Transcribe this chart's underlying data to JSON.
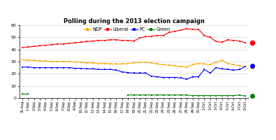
{
  "title": "Polling during the 2013 election campaign",
  "x_labels": [
    "31-Aug",
    "1-Sep",
    "2-Sep",
    "3-Sep",
    "4-Sep",
    "5-Sep",
    "6-Sep",
    "7-Sep",
    "8-Sep",
    "9-Sep",
    "10-Sep",
    "11-Sep",
    "12-Sep",
    "13-Sep",
    "14-Sep",
    "15-Sep",
    "16-Sep",
    "17-Sep",
    "18-Sep",
    "19-Sep",
    "20-Sep",
    "21-Sep",
    "22-Sep",
    "23-Sep",
    "24-Sep",
    "25-Sep",
    "26-Sep",
    "27-Sep",
    "28-Sep",
    "29-Sep",
    "30-Sep",
    "1-Oct",
    "2-Oct",
    "3-Oct",
    "4-Oct",
    "5-Oct",
    "6-Oct",
    "7-Oct",
    "8-Oct"
  ],
  "NDP": [
    31.5,
    31.0,
    31.0,
    30.5,
    30.5,
    30.0,
    30.0,
    30.0,
    30.0,
    29.5,
    29.5,
    29.0,
    29.0,
    28.5,
    28.5,
    28.0,
    28.0,
    28.0,
    28.5,
    29.0,
    29.5,
    29.5,
    29.0,
    28.0,
    27.5,
    27.0,
    26.5,
    26.0,
    25.5,
    27.5,
    28.5,
    28.0,
    27.5,
    29.5,
    31.0,
    28.5,
    27.5,
    26.5,
    26.0
  ],
  "Liberal": [
    41.5,
    42.0,
    42.5,
    43.0,
    43.5,
    44.0,
    44.5,
    44.5,
    45.0,
    45.5,
    46.0,
    46.5,
    47.0,
    47.5,
    47.5,
    48.0,
    48.0,
    47.5,
    47.5,
    47.0,
    49.5,
    50.5,
    51.0,
    51.5,
    51.5,
    54.0,
    55.0,
    56.0,
    57.0,
    56.5,
    56.5,
    51.5,
    50.0,
    46.5,
    46.0,
    48.0,
    47.5,
    47.0,
    45.5
  ],
  "PC": [
    25.5,
    25.5,
    25.0,
    25.0,
    25.0,
    25.0,
    25.0,
    25.0,
    25.0,
    24.5,
    24.5,
    24.0,
    24.0,
    23.5,
    23.5,
    23.5,
    23.0,
    21.5,
    21.0,
    20.5,
    20.5,
    20.5,
    18.0,
    17.5,
    17.0,
    17.0,
    17.0,
    16.5,
    15.5,
    17.5,
    17.5,
    23.5,
    20.5,
    25.0,
    24.0,
    23.5,
    23.0,
    23.5,
    26.0
  ],
  "Green": [
    3.5,
    3.5,
    null,
    null,
    null,
    null,
    null,
    null,
    null,
    null,
    null,
    null,
    null,
    null,
    null,
    null,
    null,
    null,
    2.5,
    2.5,
    2.5,
    2.5,
    2.5,
    2.5,
    2.5,
    2.5,
    2.5,
    2.5,
    2.5,
    2.0,
    2.0,
    2.0,
    2.0,
    2.0,
    2.0,
    2.0,
    2.0,
    2.5,
    1.5
  ],
  "end_markers": {
    "Liberal": 45.5,
    "NDP": 26.0,
    "PC": 26.5,
    "Green": 2.0
  },
  "NDP_color": "#FFA500",
  "Liberal_color": "#FF0000",
  "PC_color": "#0000FF",
  "Green_color": "#008000",
  "ylim": [
    0,
    60
  ],
  "yticks": [
    0,
    10,
    20,
    30,
    40,
    50,
    60
  ],
  "title_fontsize": 6.0,
  "legend_fontsize": 4.8
}
